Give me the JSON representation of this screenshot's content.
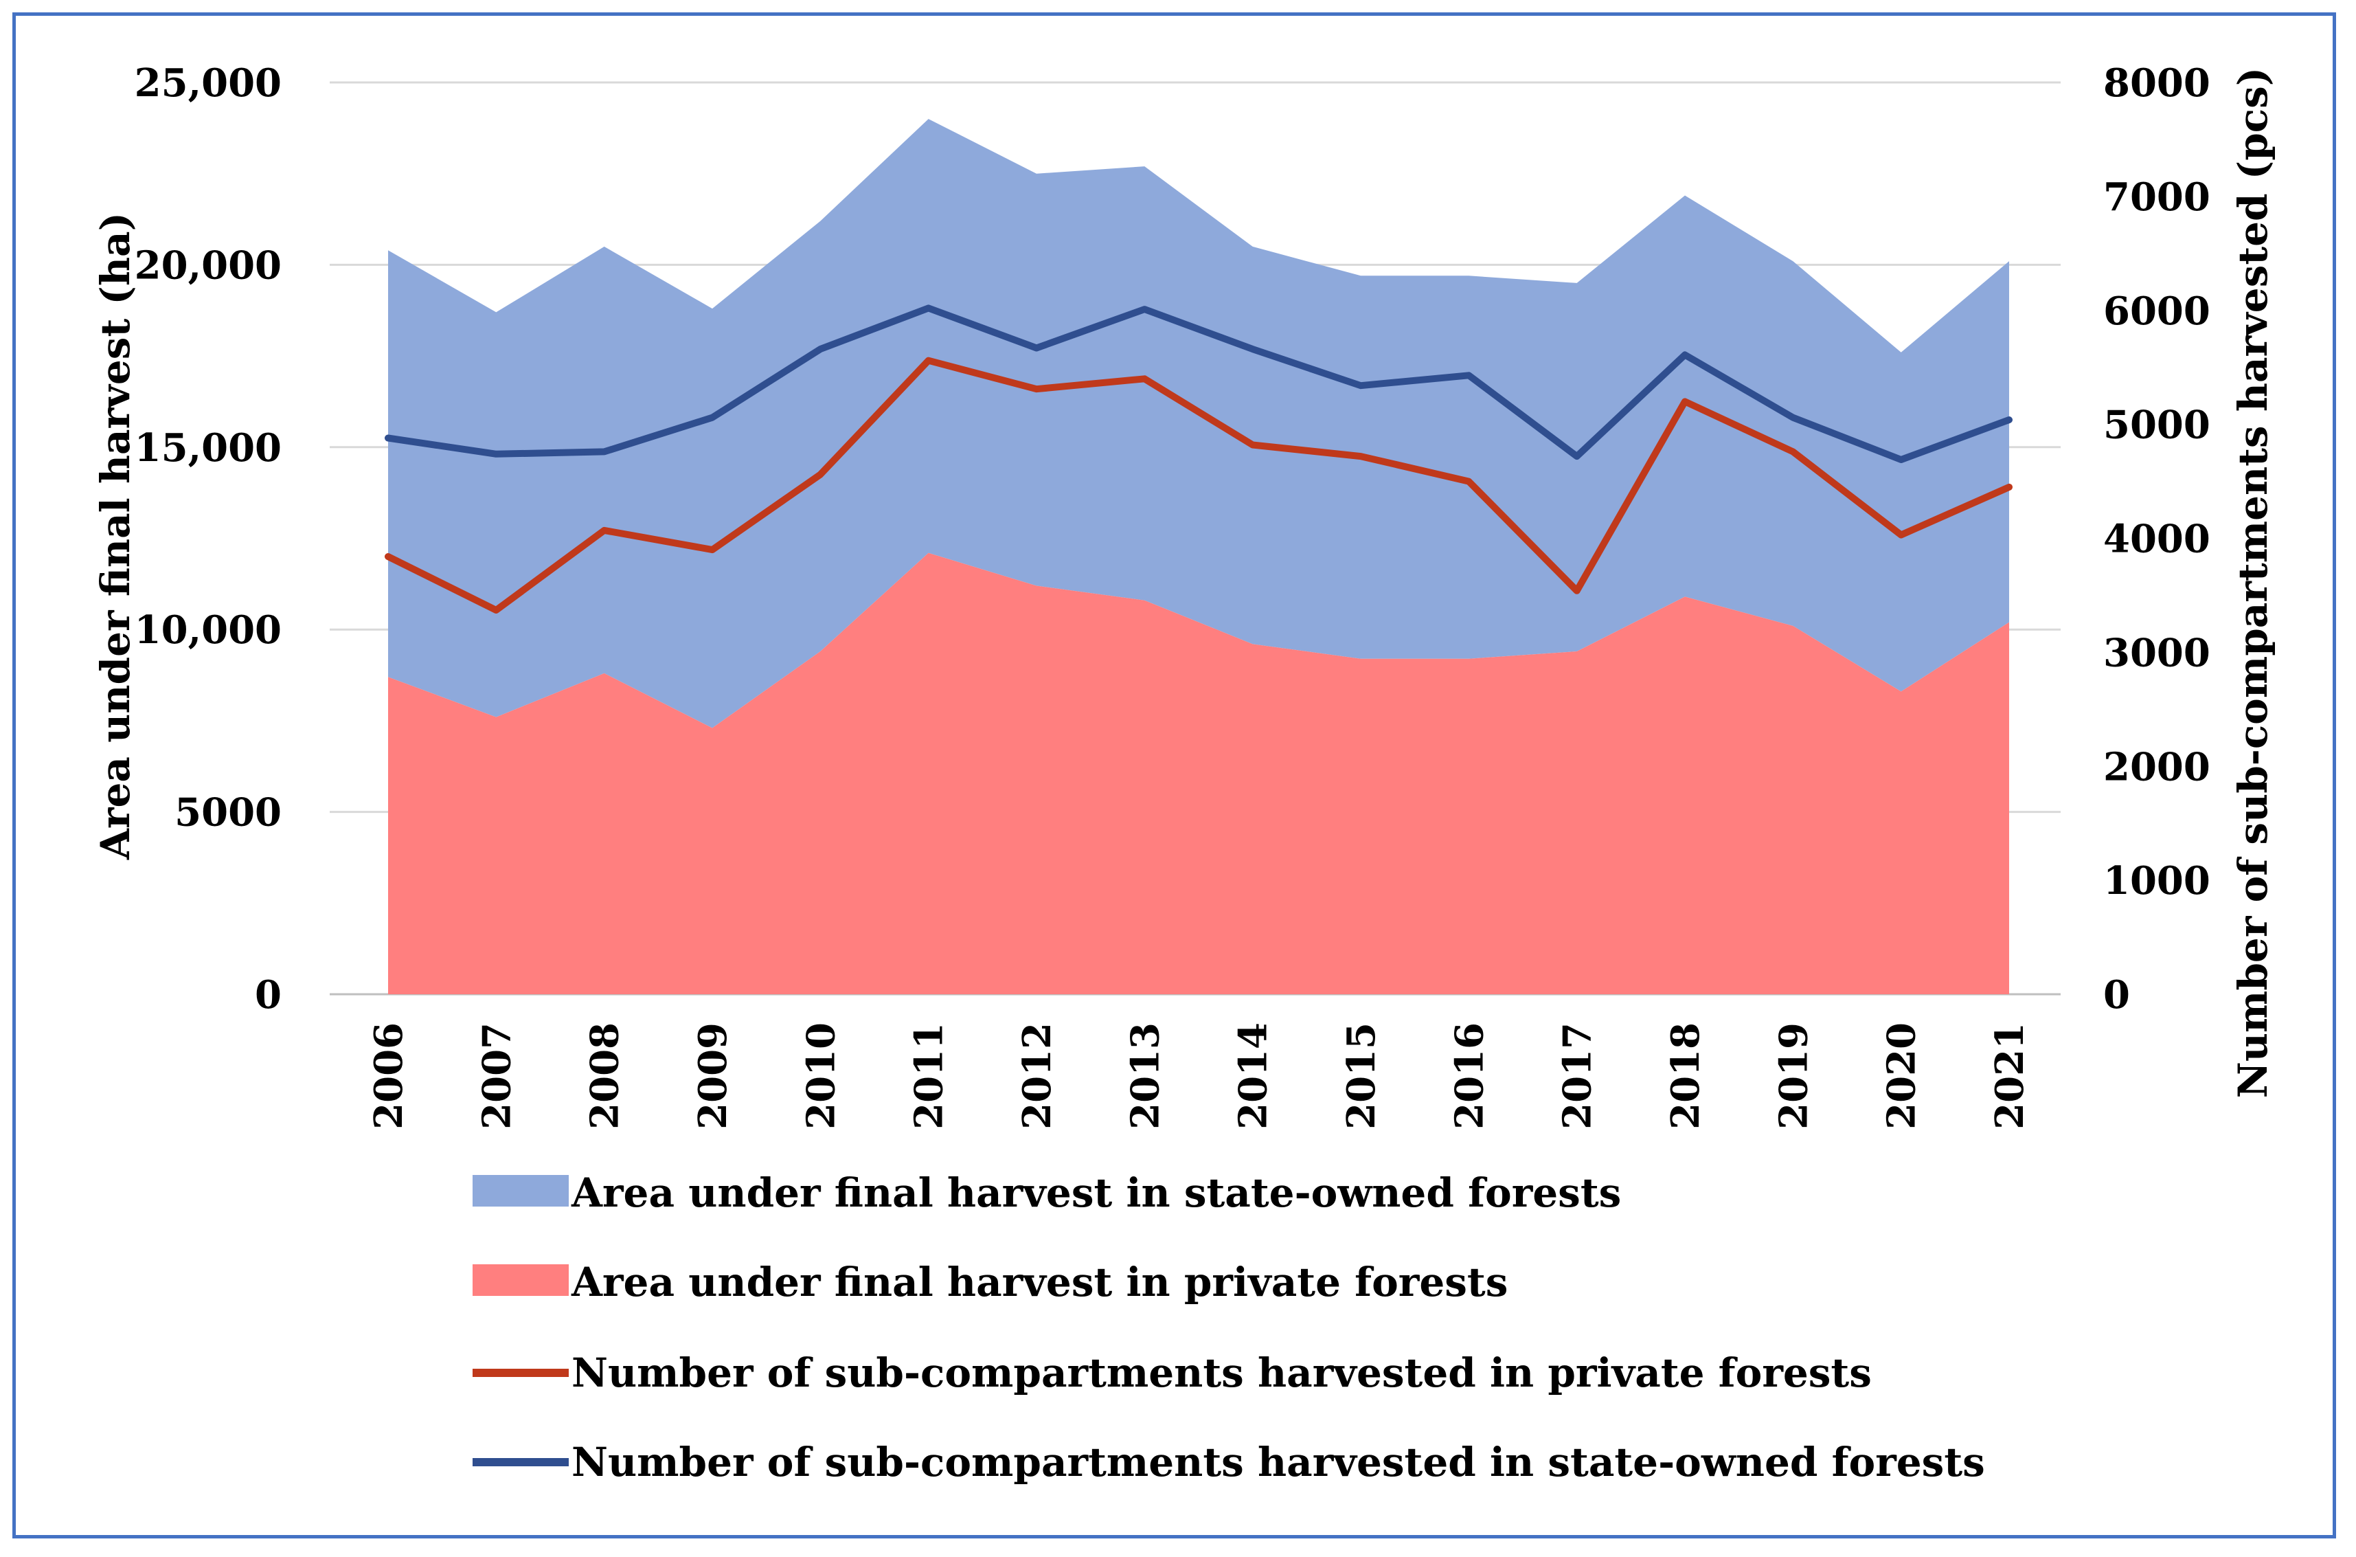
{
  "chart_data": {
    "type": "area",
    "x": [
      "2006",
      "2007",
      "2008",
      "2009",
      "2010",
      "2011",
      "2012",
      "2013",
      "2014",
      "2015",
      "2016",
      "2017",
      "2018",
      "2019",
      "2020",
      "2021"
    ],
    "series": [
      {
        "name": "Area under final harvest in state-owned forests",
        "kind": "stacked-area",
        "axis": "left",
        "color": "#8EA9DB",
        "values": [
          11700,
          11100,
          11700,
          11500,
          11800,
          11900,
          11300,
          11900,
          10900,
          10500,
          10500,
          10100,
          11000,
          10000,
          9300,
          9900
        ]
      },
      {
        "name": "Area under final harvest in private forests",
        "kind": "stacked-area",
        "axis": "left",
        "color": "#FF7F7F",
        "values": [
          8700,
          7600,
          8800,
          7300,
          9400,
          12100,
          11200,
          10800,
          9600,
          9200,
          9200,
          9400,
          10900,
          10100,
          8300,
          10200
        ]
      },
      {
        "name": "Number of sub-compartments harvested in private forests",
        "kind": "line",
        "axis": "right",
        "color": "#C0391B",
        "values": [
          3840,
          3370,
          4070,
          3900,
          4560,
          5560,
          5310,
          5400,
          4820,
          4720,
          4500,
          3540,
          5200,
          4760,
          4030,
          4450
        ]
      },
      {
        "name": "Number of sub-compartments harvested in state-owned forests",
        "kind": "line",
        "axis": "right",
        "color": "#2F4E8F",
        "values": [
          4880,
          4740,
          4760,
          5060,
          5660,
          6020,
          5670,
          6010,
          5660,
          5340,
          5430,
          4720,
          5610,
          5060,
          4690,
          5040
        ]
      }
    ],
    "y_left": {
      "label": "Area under final harvest (ha)",
      "range": [
        0,
        25000
      ],
      "ticks": [
        0,
        5000,
        10000,
        15000,
        20000,
        25000
      ],
      "tick_labels": [
        "0",
        "5000",
        "10,000",
        "15,000",
        "20,000",
        "25,000"
      ]
    },
    "y_right": {
      "label": "Number of sub-compartments harvested (pcs)",
      "range": [
        0,
        8000
      ],
      "ticks": [
        0,
        1000,
        2000,
        3000,
        4000,
        5000,
        6000,
        7000,
        8000
      ],
      "tick_labels": [
        "0",
        "1000",
        "2000",
        "3000",
        "4000",
        "5000",
        "6000",
        "7000",
        "8000"
      ]
    },
    "grid": true,
    "legend_position": "bottom",
    "legend": [
      {
        "label": "Area under final harvest in state-owned forests",
        "kind": "box",
        "color": "#8EA9DB"
      },
      {
        "label": "Area under final harvest in private forests",
        "kind": "box",
        "color": "#FF7F7F"
      },
      {
        "label": "Number of sub-compartments harvested in private forests",
        "kind": "line",
        "color": "#C0391B"
      },
      {
        "label": "Number of sub-compartments harvested in state-owned forests",
        "kind": "line",
        "color": "#2F4E8F"
      }
    ]
  }
}
